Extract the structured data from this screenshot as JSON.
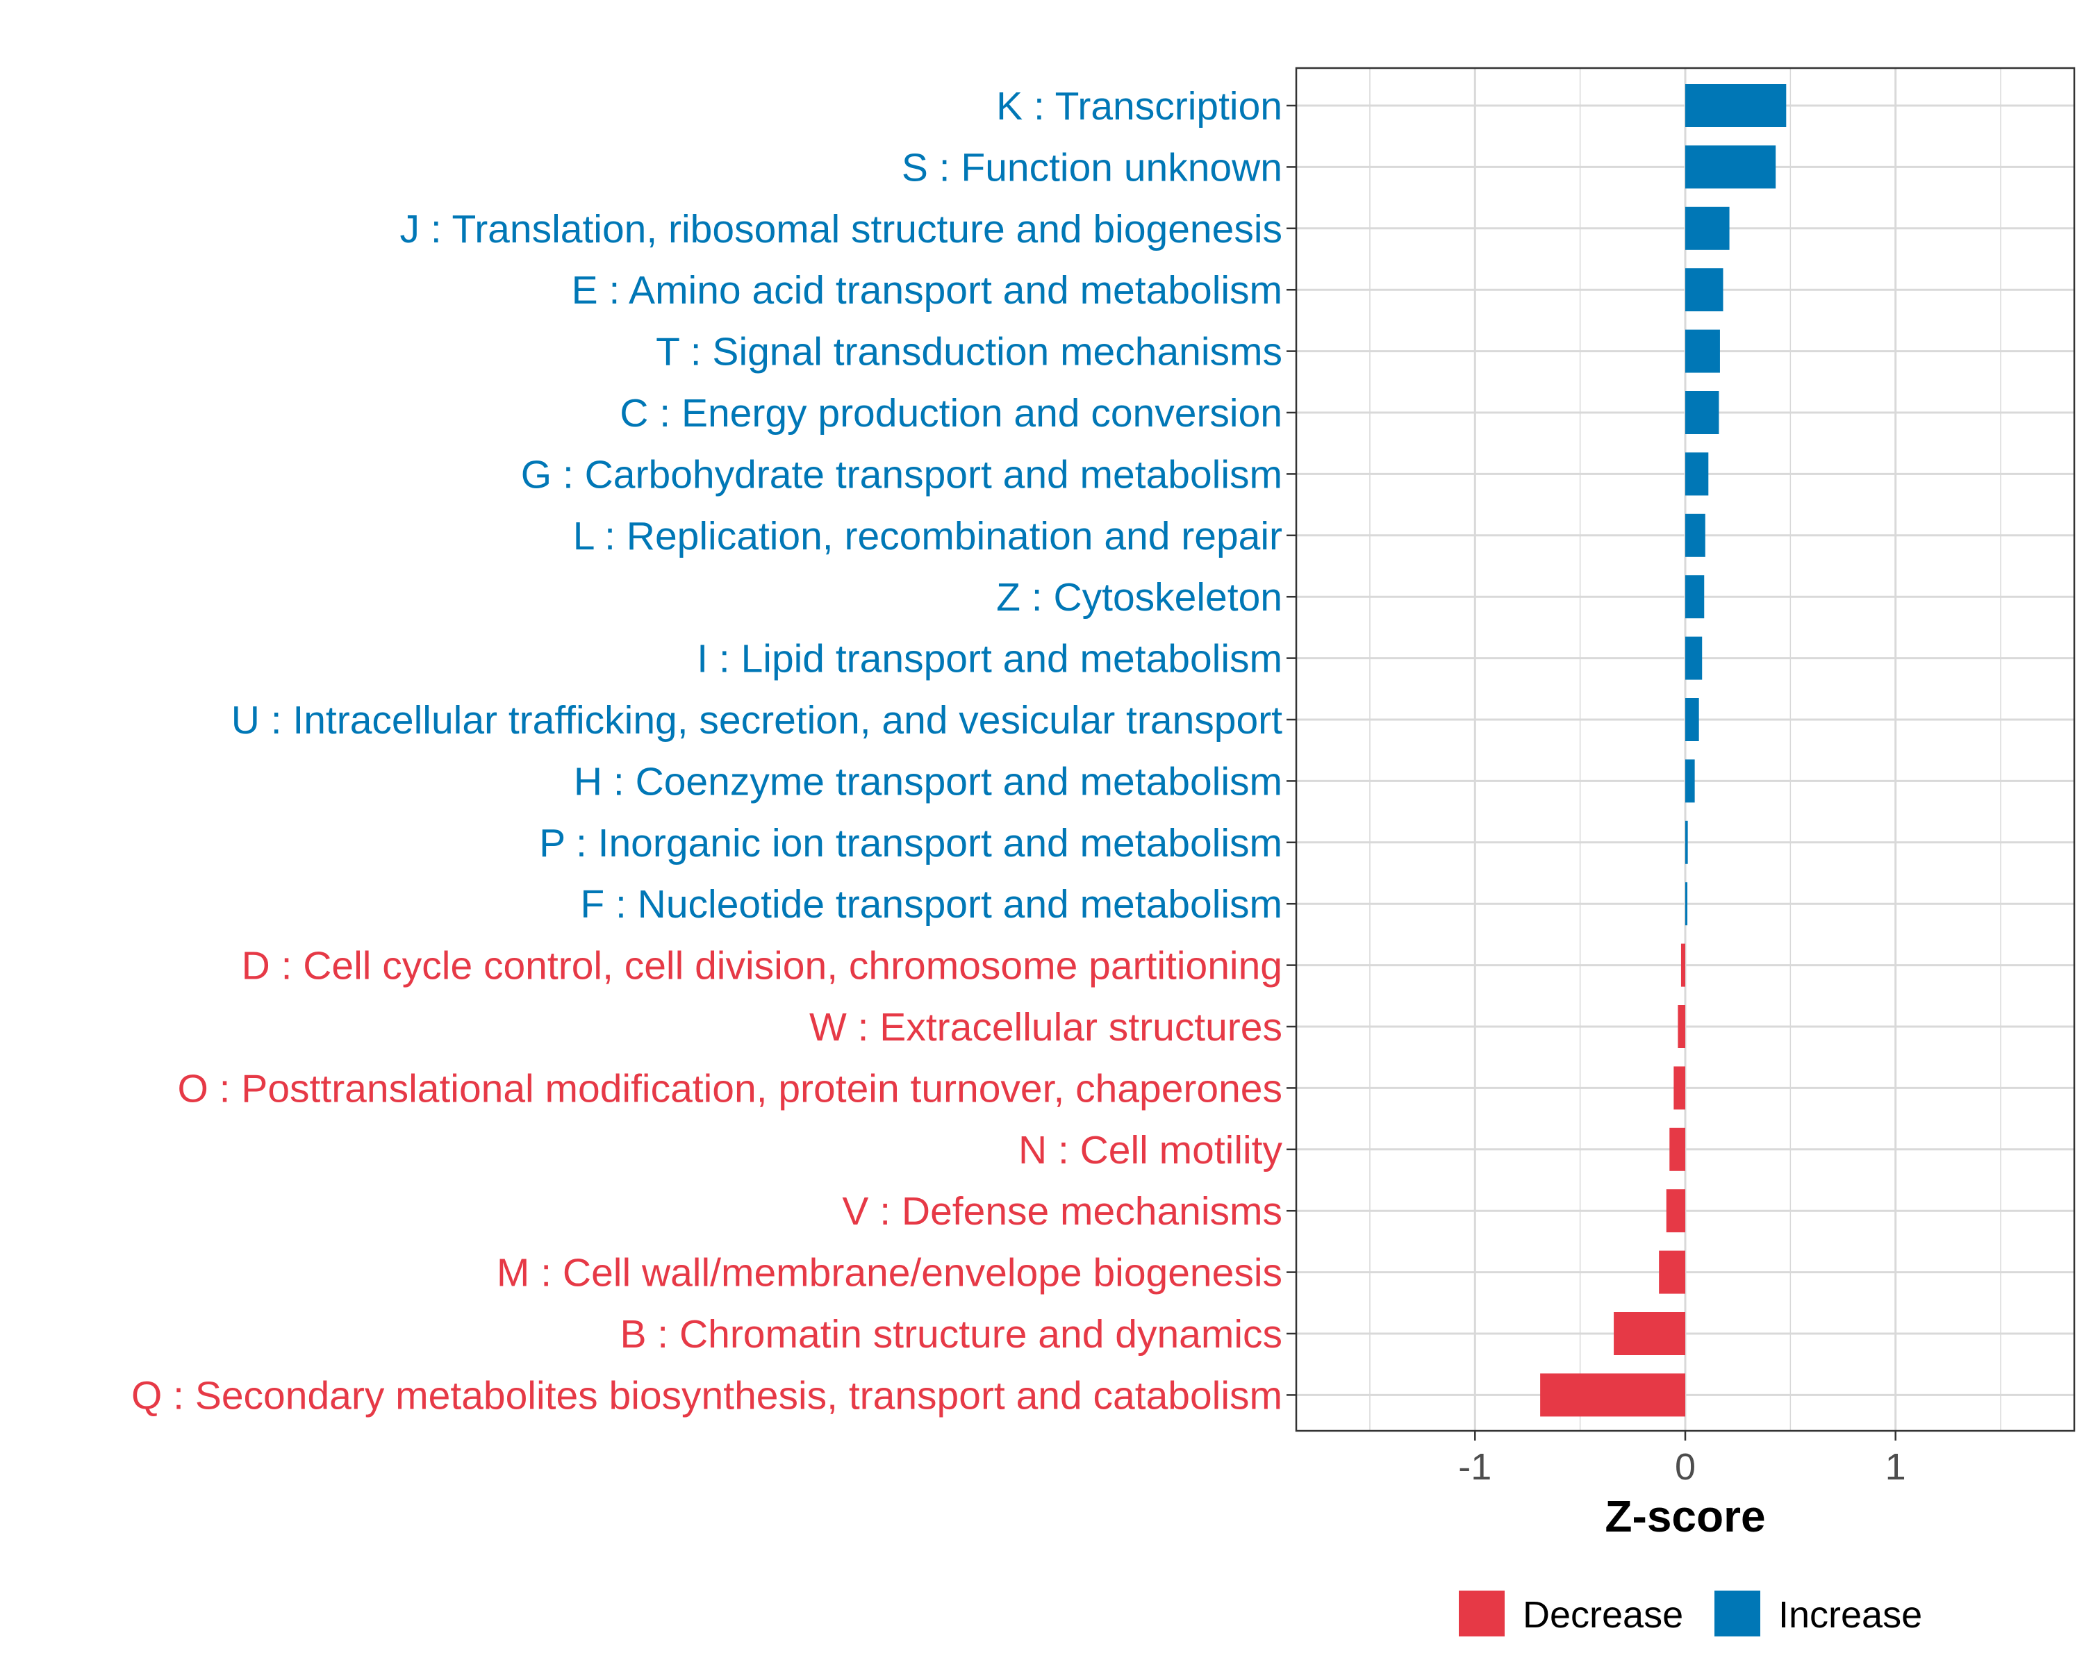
{
  "chart_data": {
    "type": "bar",
    "orientation": "horizontal",
    "title": "",
    "xlabel": "Z-score",
    "ylabel": "",
    "xlim": [
      -1.85,
      1.85
    ],
    "x_ticks": [
      -1,
      0,
      1
    ],
    "x_tick_labels": [
      "-1",
      "0",
      "1"
    ],
    "grid": true,
    "legend_position": "bottom",
    "legend": [
      {
        "name": "Decrease",
        "color": "#E63946"
      },
      {
        "name": "Increase",
        "color": "#0077B6"
      }
    ],
    "bars": [
      {
        "label": "K : Transcription",
        "value": 0.48,
        "group": "Increase"
      },
      {
        "label": "S : Function unknown",
        "value": 0.43,
        "group": "Increase"
      },
      {
        "label": "J : Translation, ribosomal structure and biogenesis",
        "value": 0.21,
        "group": "Increase"
      },
      {
        "label": "E : Amino acid transport and metabolism",
        "value": 0.18,
        "group": "Increase"
      },
      {
        "label": "T : Signal transduction mechanisms",
        "value": 0.165,
        "group": "Increase"
      },
      {
        "label": "C : Energy production and conversion",
        "value": 0.16,
        "group": "Increase"
      },
      {
        "label": "G : Carbohydrate transport and metabolism",
        "value": 0.11,
        "group": "Increase"
      },
      {
        "label": "L : Replication, recombination and repair",
        "value": 0.095,
        "group": "Increase"
      },
      {
        "label": "Z : Cytoskeleton",
        "value": 0.09,
        "group": "Increase"
      },
      {
        "label": "I : Lipid transport and metabolism",
        "value": 0.08,
        "group": "Increase"
      },
      {
        "label": "U : Intracellular trafficking, secretion, and vesicular transport",
        "value": 0.065,
        "group": "Increase"
      },
      {
        "label": "H : Coenzyme transport and metabolism",
        "value": 0.045,
        "group": "Increase"
      },
      {
        "label": "P : Inorganic ion transport and metabolism",
        "value": 0.012,
        "group": "Increase"
      },
      {
        "label": "F : Nucleotide transport and metabolism",
        "value": 0.01,
        "group": "Increase"
      },
      {
        "label": "D : Cell cycle control, cell division, chromosome partitioning",
        "value": -0.02,
        "group": "Decrease"
      },
      {
        "label": "W : Extracellular structures",
        "value": -0.035,
        "group": "Decrease"
      },
      {
        "label": "O : Posttranslational modification, protein turnover, chaperones",
        "value": -0.055,
        "group": "Decrease"
      },
      {
        "label": "N : Cell motility",
        "value": -0.075,
        "group": "Decrease"
      },
      {
        "label": "V : Defense mechanisms",
        "value": -0.09,
        "group": "Decrease"
      },
      {
        "label": "M : Cell wall/membrane/envelope biogenesis",
        "value": -0.125,
        "group": "Decrease"
      },
      {
        "label": "B : Chromatin structure and dynamics",
        "value": -0.34,
        "group": "Decrease"
      },
      {
        "label": "Q : Secondary metabolites biosynthesis, transport and catabolism",
        "value": -0.69,
        "group": "Decrease"
      }
    ]
  }
}
